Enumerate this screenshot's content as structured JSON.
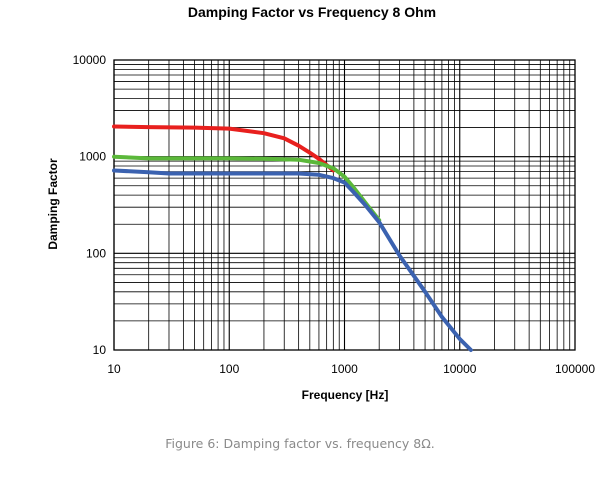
{
  "chart_data": {
    "type": "line",
    "title": "Damping Factor vs Frequency 8 Ohm",
    "xlabel": "Frequency [Hz]",
    "ylabel": "Damping Factor",
    "x_scale": "log",
    "y_scale": "log",
    "xlim": [
      10,
      100000
    ],
    "ylim": [
      10,
      10000
    ],
    "x_ticks": [
      "10",
      "100",
      "1000",
      "10000",
      "100000"
    ],
    "y_ticks": [
      "10",
      "100",
      "1000",
      "10000"
    ],
    "grid": true,
    "legend": "none",
    "series": [
      {
        "color": "#e8201e",
        "x": [
          10,
          20,
          50,
          100,
          200,
          300,
          400,
          500,
          600,
          700,
          800
        ],
        "y": [
          2050,
          2020,
          2000,
          1950,
          1750,
          1550,
          1300,
          1100,
          950,
          820,
          720
        ]
      },
      {
        "color": "#5bb83a",
        "x": [
          10,
          20,
          30,
          50,
          100,
          200,
          400,
          600,
          800,
          1000,
          1200,
          1500,
          2000
        ],
        "y": [
          1000,
          960,
          960,
          960,
          960,
          950,
          930,
          860,
          760,
          620,
          480,
          340,
          220
        ]
      },
      {
        "color": "#3b62b0",
        "x": [
          10,
          20,
          30,
          50,
          100,
          200,
          400,
          600,
          800,
          1000,
          1200,
          1500,
          2000,
          3000,
          5000,
          7000,
          10000,
          12500
        ],
        "y": [
          720,
          690,
          670,
          670,
          670,
          670,
          670,
          650,
          600,
          540,
          430,
          320,
          210,
          95,
          40,
          22,
          13,
          9.5
        ]
      }
    ]
  },
  "caption": "Figure 6: Damping factor vs. frequency 8Ω."
}
